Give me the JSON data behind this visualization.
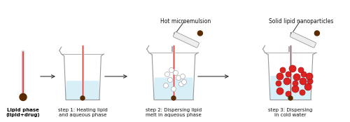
{
  "background_color": "#ffffff",
  "beaker_fill_color": "#d4eef8",
  "beaker_edge_color": "#999999",
  "thermometer_stem_bg": "#dddddd",
  "thermometer_line_color": "#cc3333",
  "bulb_color": "#5a2a00",
  "particle_red": "#dd2222",
  "particle_red_edge": "#aa1111",
  "particle_white": "#ffffff",
  "particle_white_edge": "#aaaaaa",
  "arrow_color": "#333333",
  "label_color": "#111111",
  "label_bold_color": "#000000",
  "labels": [
    "Lipid phase\n(lipid+drug)",
    "step 1: Heating lipid\nand aqueous phase",
    "step 2: Dispersing lipid\nmelt in aqueous phase",
    "step 3: Dispersing\nin cold water"
  ],
  "top_labels": [
    "Hot microemulsion",
    "Solid lipid nanoparticles"
  ],
  "figsize": [
    5.0,
    1.74
  ],
  "dpi": 100
}
